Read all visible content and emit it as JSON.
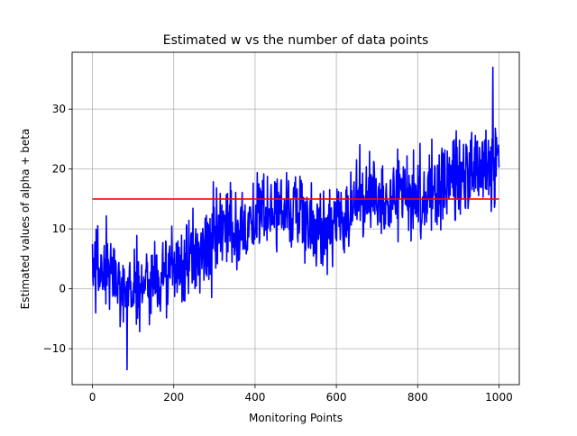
{
  "chart_data": {
    "type": "line",
    "title": "Estimated w vs the number of data points",
    "xlabel": "Monitoring Points",
    "ylabel": "Estimated values of alpha + beta",
    "xlim": [
      -50,
      1050
    ],
    "ylim": [
      -16,
      39.5
    ],
    "xticks": [
      0,
      200,
      400,
      600,
      800,
      1000
    ],
    "yticks": [
      -10,
      0,
      10,
      20,
      30
    ],
    "grid": true,
    "series": [
      {
        "color": "#0000ff",
        "kind": "noisy-trend",
        "n_points": 1000,
        "x_start": 0,
        "x_end": 1000,
        "trend": [
          {
            "x": 0,
            "y": 4
          },
          {
            "x": 100,
            "y": 0
          },
          {
            "x": 200,
            "y": 3
          },
          {
            "x": 300,
            "y": 8
          },
          {
            "x": 400,
            "y": 12
          },
          {
            "x": 500,
            "y": 14
          },
          {
            "x": 550,
            "y": 9
          },
          {
            "x": 600,
            "y": 12
          },
          {
            "x": 700,
            "y": 16
          },
          {
            "x": 800,
            "y": 16
          },
          {
            "x": 900,
            "y": 18
          },
          {
            "x": 1000,
            "y": 22
          }
        ],
        "noise_amplitude": 5,
        "min": {
          "x": 85,
          "y": -13.5
        },
        "max": {
          "x": 985,
          "y": 37
        }
      },
      {
        "color": "#ff0000",
        "kind": "constant",
        "x": [
          0,
          1000
        ],
        "y": [
          15,
          15
        ]
      }
    ]
  }
}
